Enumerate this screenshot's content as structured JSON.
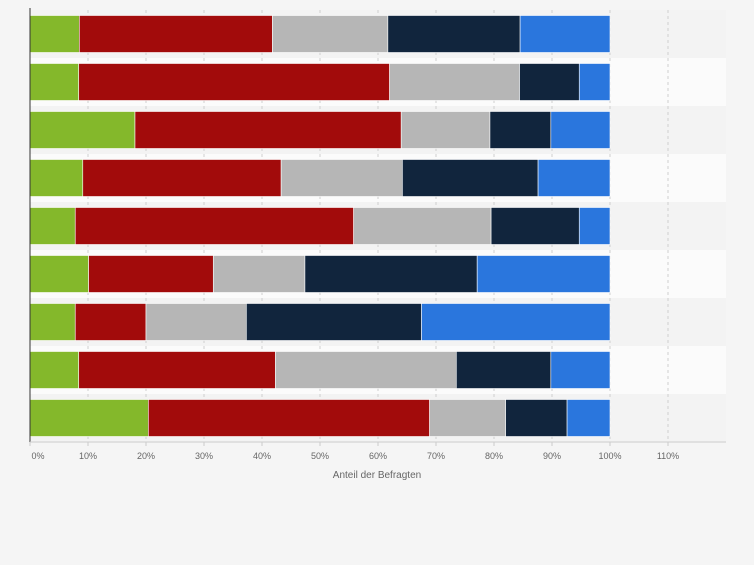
{
  "chart_data": {
    "type": "bar",
    "orientation": "horizontal",
    "stacked": true,
    "title": "",
    "xlabel": "Anteil der Befragten",
    "ylabel": "",
    "xlim": [
      0,
      120
    ],
    "x_ticks": [
      0,
      10,
      20,
      30,
      40,
      50,
      60,
      70,
      80,
      90,
      100,
      110
    ],
    "x_tick_labels": [
      "0%",
      "10%",
      "20%",
      "30%",
      "40%",
      "50%",
      "60%",
      "70%",
      "80%",
      "90%",
      "100%",
      "110%"
    ],
    "grid": true,
    "legend": "none",
    "categories": [
      "",
      "",
      "",
      "",
      "",
      "",
      "",
      "",
      ""
    ],
    "series": [
      {
        "name": "",
        "color": "#84b82b",
        "values": [
          8.5,
          8.4,
          18.1,
          9.1,
          7.8,
          10.1,
          7.8,
          8.4,
          20.4
        ]
      },
      {
        "name": "",
        "color": "#a20b0b",
        "values": [
          33.3,
          53.6,
          45.9,
          34.2,
          48.0,
          21.5,
          12.2,
          33.9,
          48.5
        ]
      },
      {
        "name": "",
        "color": "#b6b6b6",
        "values": [
          19.9,
          22.4,
          15.3,
          20.9,
          23.7,
          15.8,
          17.3,
          31.2,
          13.1
        ]
      },
      {
        "name": "",
        "color": "#11253d",
        "values": [
          22.8,
          10.3,
          10.5,
          23.4,
          15.2,
          29.7,
          30.2,
          16.3,
          10.6
        ]
      },
      {
        "name": "",
        "color": "#2a76dd",
        "values": [
          15.5,
          5.3,
          10.2,
          12.4,
          5.3,
          22.9,
          32.5,
          10.2,
          7.4
        ]
      }
    ]
  }
}
